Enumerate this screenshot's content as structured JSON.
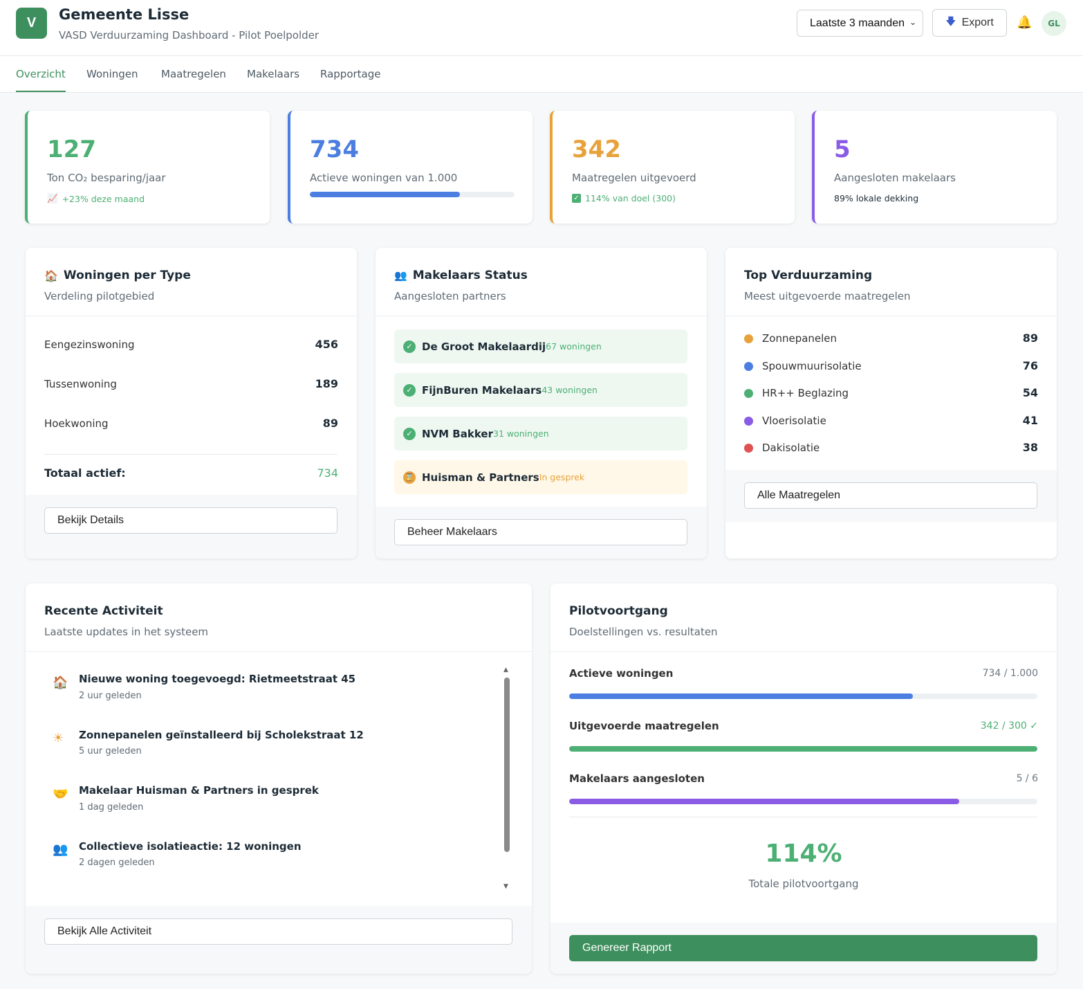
{
  "header": {
    "logo_letter": "V",
    "title": "Gemeente Lisse",
    "subtitle": "VASD Verduurzaming Dashboard - Pilot Poelpolder",
    "period": "Laatste 3 maanden",
    "export_label": "Export",
    "avatar_initials": "GL"
  },
  "tabs": [
    {
      "label": "Overzicht",
      "active": true
    },
    {
      "label": "Woningen"
    },
    {
      "label": "Maatregelen"
    },
    {
      "label": "Makelaars"
    },
    {
      "label": "Rapportage"
    }
  ],
  "kpis": [
    {
      "value": "127",
      "label": "Ton CO₂ besparing/jaar",
      "meta": "+23% deze maand",
      "color": "#4caf73"
    },
    {
      "value": "734",
      "label": "Actieve woningen van 1.000",
      "progress": 0.734,
      "color": "#4b7ee0"
    },
    {
      "value": "342",
      "label": "Maatregelen uitgevoerd",
      "meta": "114% van doel (300)",
      "color": "#e8a23b"
    },
    {
      "value": "5",
      "label": "Aangesloten makelaars",
      "meta": "89% lokale dekking",
      "color": "#8a5ce6"
    }
  ],
  "woningen": {
    "title": "Woningen per Type",
    "subtitle": "Verdeling pilotgebied",
    "rows": [
      {
        "label": "Eengezinswoning",
        "value": "456"
      },
      {
        "label": "Tussenwoning",
        "value": "189"
      },
      {
        "label": "Hoekwoning",
        "value": "89"
      }
    ],
    "total_label": "Totaal actief:",
    "total_value": "734",
    "button": "Bekijk Details"
  },
  "makelaars": {
    "title": "Makelaars Status",
    "subtitle": "Aangesloten partners",
    "items": [
      {
        "name": "De Groot Makelaardij",
        "note": "67 woningen",
        "status": "active"
      },
      {
        "name": "FijnBuren Makelaars",
        "note": "43 woningen",
        "status": "active"
      },
      {
        "name": "NVM Bakker",
        "note": "31 woningen",
        "status": "active"
      },
      {
        "name": "Huisman & Partners",
        "note": "In gesprek",
        "status": "pending"
      }
    ],
    "button": "Beheer Makelaars"
  },
  "top": {
    "title": "Top Verduurzaming",
    "subtitle": "Meest uitgevoerde maatregelen",
    "items": [
      {
        "label": "Zonnepanelen",
        "value": "89",
        "color": "#e8a23b"
      },
      {
        "label": "Spouwmuurisolatie",
        "value": "76",
        "color": "#4b7ee0"
      },
      {
        "label": "HR++ Beglazing",
        "value": "54",
        "color": "#4caf73"
      },
      {
        "label": "Vloerisolatie",
        "value": "41",
        "color": "#8a5ce6"
      },
      {
        "label": "Dakisolatie",
        "value": "38",
        "color": "#e05252"
      }
    ],
    "button": "Alle Maatregelen"
  },
  "activity": {
    "title": "Recente Activiteit",
    "subtitle": "Laatste updates in het systeem",
    "items": [
      {
        "icon": "house-icon",
        "title": "Nieuwe woning toegevoegd: Rietmeetstraat 45",
        "time": "2 uur geleden"
      },
      {
        "icon": "sun-icon",
        "title": "Zonnepanelen geïnstalleerd bij Scholekstraat 12",
        "time": "5 uur geleden"
      },
      {
        "icon": "handshake-icon",
        "title": "Makelaar Huisman & Partners in gesprek",
        "time": "1 dag geleden"
      },
      {
        "icon": "people-icon",
        "title": "Collectieve isolatieactie: 12 woningen",
        "time": "2 dagen geleden"
      }
    ],
    "button": "Bekijk Alle Activiteit"
  },
  "pilot": {
    "title": "Pilotvoortgang",
    "subtitle": "Doelstellingen vs. resultaten",
    "rows": [
      {
        "label": "Actieve woningen",
        "value": "734 / 1.000",
        "progress": 0.734,
        "color": "#4b7ee0"
      },
      {
        "label": "Uitgevoerde maatregelen",
        "value": "342 / 300 ✓",
        "progress": 1.0,
        "color": "#4caf73"
      },
      {
        "label": "Makelaars aangesloten",
        "value": "5 / 6",
        "progress": 0.833,
        "color": "#8a5ce6"
      }
    ],
    "total_value": "114%",
    "total_label": "Totale pilotvoortgang",
    "button": "Genereer Rapport"
  }
}
